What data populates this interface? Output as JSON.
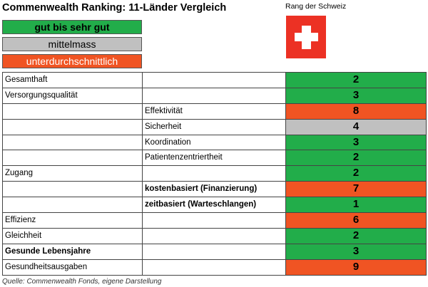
{
  "title": "Commenwealth Ranking: 11-Länder Vergleich",
  "legend": [
    {
      "label": "gut bis sehr gut",
      "color": "#22ad4a",
      "bold": true,
      "text_color": "#000000"
    },
    {
      "label": "mittelmass",
      "color": "#c0c0c0",
      "bold": false,
      "text_color": "#000000"
    },
    {
      "label": "unterdurchschnittlich",
      "color": "#f05423",
      "bold": false,
      "text_color": "#ffffff"
    }
  ],
  "rank_header": "Rang der Schweiz",
  "flag_icon": "swiss-flag-icon",
  "rows": [
    {
      "category": "Gesamthaft",
      "subcategory": "",
      "rank": "2",
      "rating": "good",
      "sub_bold": false,
      "cat_bold": false
    },
    {
      "category": "Versorgungsqualität",
      "subcategory": "",
      "rank": "3",
      "rating": "good",
      "sub_bold": false,
      "cat_bold": false
    },
    {
      "category": "",
      "subcategory": "Effektivität",
      "rank": "8",
      "rating": "poor",
      "sub_bold": false,
      "cat_bold": false
    },
    {
      "category": "",
      "subcategory": "Sicherheit",
      "rank": "4",
      "rating": "medium",
      "sub_bold": false,
      "cat_bold": false
    },
    {
      "category": "",
      "subcategory": "Koordination",
      "rank": "3",
      "rating": "good",
      "sub_bold": false,
      "cat_bold": false
    },
    {
      "category": "",
      "subcategory": "Patientenzentriertheit",
      "rank": "2",
      "rating": "good",
      "sub_bold": false,
      "cat_bold": false
    },
    {
      "category": "Zugang",
      "subcategory": "",
      "rank": "2",
      "rating": "good",
      "sub_bold": false,
      "cat_bold": false
    },
    {
      "category": "",
      "subcategory": "kostenbasiert (Finanzierung)",
      "rank": "7",
      "rating": "poor",
      "sub_bold": true,
      "cat_bold": false
    },
    {
      "category": "",
      "subcategory": "zeitbasiert (Warteschlangen)",
      "rank": "1",
      "rating": "good",
      "sub_bold": true,
      "cat_bold": false
    },
    {
      "category": "Effizienz",
      "subcategory": "",
      "rank": "6",
      "rating": "poor",
      "sub_bold": false,
      "cat_bold": false
    },
    {
      "category": "Gleichheit",
      "subcategory": "",
      "rank": "2",
      "rating": "good",
      "sub_bold": false,
      "cat_bold": false
    },
    {
      "category": "Gesunde Lebensjahre",
      "subcategory": "",
      "rank": "3",
      "rating": "good",
      "sub_bold": false,
      "cat_bold": true
    },
    {
      "category": "Gesundheitsausgaben",
      "subcategory": "",
      "rank": "9",
      "rating": "poor",
      "sub_bold": false,
      "cat_bold": false
    }
  ],
  "colors": {
    "good": "#22ad4a",
    "medium": "#c0c0c0",
    "poor": "#f05423",
    "flag": "#ec3124"
  },
  "source": "Quelle: Commenwealth Fonds, eigene Darstellung"
}
